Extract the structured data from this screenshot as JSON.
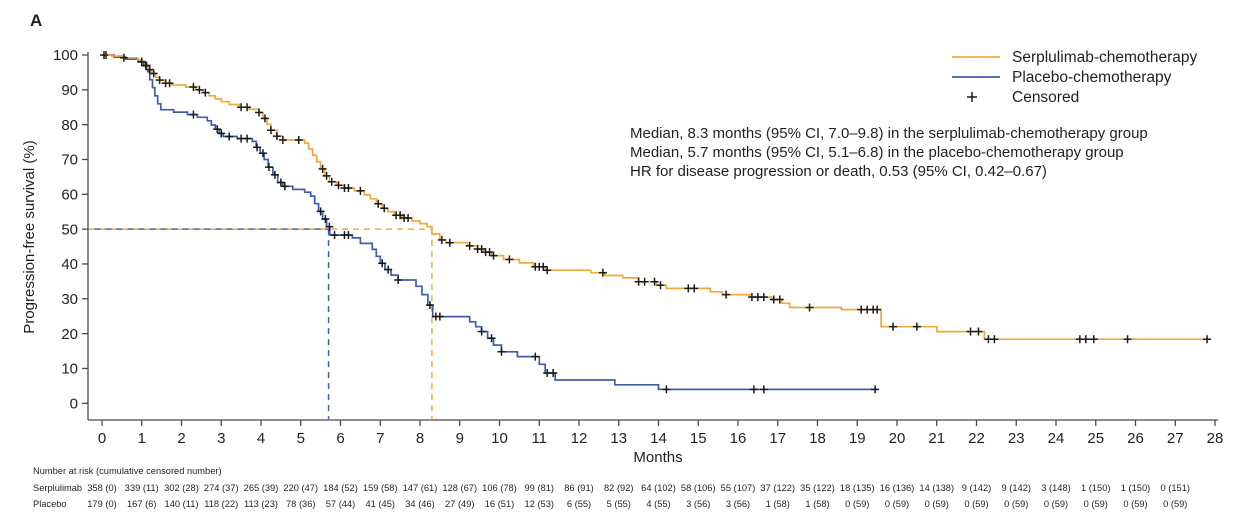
{
  "panel_label": "A",
  "colors": {
    "serplulimab": "#f2a93b",
    "placebo": "#3f5fae",
    "censor": "#1a1a1a",
    "axis": "#4a4a4a",
    "text": "#231f20"
  },
  "legend": {
    "items": [
      {
        "label": "Serplulimab-chemotherapy",
        "marker": "line",
        "color": "#f2a93b"
      },
      {
        "label": "Placebo-chemotherapy",
        "marker": "line",
        "color": "#3f5fae"
      },
      {
        "label": "Censored",
        "marker": "plus",
        "color": "#1a1a1a"
      }
    ]
  },
  "annotations": {
    "line1": "Median, 8.3 months (95% CI, 7.0–9.8) in the serplulimab-chemotherapy group",
    "line2": "Median, 5.7 months (95% CI, 5.1–6.8) in the placebo-chemotherapy group",
    "line3": "HR for disease progression or death, 0.53 (95% CI, 0.42–0.67)"
  },
  "chart_data": {
    "type": "line",
    "subtype": "kaplan-meier-step",
    "xlabel": "Months",
    "ylabel": "Progression-free survival (%)",
    "xlim": [
      0,
      28
    ],
    "ylim": [
      0,
      100
    ],
    "x_ticks": [
      0,
      1,
      2,
      3,
      4,
      5,
      6,
      7,
      8,
      9,
      10,
      11,
      12,
      13,
      14,
      15,
      16,
      17,
      18,
      19,
      20,
      21,
      22,
      23,
      24,
      25,
      26,
      27,
      28
    ],
    "y_ticks": [
      0,
      10,
      20,
      30,
      40,
      50,
      60,
      70,
      80,
      90,
      100
    ],
    "grid": false,
    "legend_position": "top-right",
    "medians": {
      "serplulimab_months": 8.3,
      "placebo_months": 5.7,
      "reference_pct": 50
    },
    "series": [
      {
        "name": "Placebo-chemotherapy",
        "color": "#3f5fae",
        "steps": [
          [
            0,
            100
          ],
          [
            0.3,
            99.4
          ],
          [
            0.6,
            98.8
          ],
          [
            0.9,
            98.1
          ],
          [
            1.05,
            97.0
          ],
          [
            1.15,
            95.2
          ],
          [
            1.2,
            92.9
          ],
          [
            1.27,
            90.6
          ],
          [
            1.33,
            88.3
          ],
          [
            1.4,
            86.0
          ],
          [
            1.48,
            84.3
          ],
          [
            1.8,
            83.6
          ],
          [
            2.15,
            82.9
          ],
          [
            2.4,
            82.1
          ],
          [
            2.65,
            81.1
          ],
          [
            2.75,
            79.9
          ],
          [
            2.85,
            78.7
          ],
          [
            2.95,
            77.5
          ],
          [
            3.05,
            76.6
          ],
          [
            3.4,
            76.0
          ],
          [
            3.78,
            75.2
          ],
          [
            3.88,
            73.5
          ],
          [
            3.98,
            71.8
          ],
          [
            4.08,
            70.0
          ],
          [
            4.18,
            67.8
          ],
          [
            4.3,
            65.6
          ],
          [
            4.42,
            63.4
          ],
          [
            4.55,
            62.3
          ],
          [
            4.8,
            61.4
          ],
          [
            5.1,
            60.6
          ],
          [
            5.25,
            59.5
          ],
          [
            5.35,
            57.3
          ],
          [
            5.45,
            55.1
          ],
          [
            5.55,
            52.9
          ],
          [
            5.65,
            50.7
          ],
          [
            5.73,
            48.3
          ],
          [
            6.3,
            47.5
          ],
          [
            6.5,
            45.9
          ],
          [
            6.8,
            44.2
          ],
          [
            6.9,
            42.2
          ],
          [
            7.0,
            40.2
          ],
          [
            7.12,
            38.4
          ],
          [
            7.27,
            36.8
          ],
          [
            7.45,
            35.4
          ],
          [
            7.9,
            33.6
          ],
          [
            8.05,
            31.2
          ],
          [
            8.2,
            28.2
          ],
          [
            8.32,
            24.9
          ],
          [
            9.25,
            23.4
          ],
          [
            9.4,
            22.0
          ],
          [
            9.55,
            20.6
          ],
          [
            9.7,
            18.7
          ],
          [
            9.85,
            16.7
          ],
          [
            10.05,
            14.8
          ],
          [
            10.45,
            13.4
          ],
          [
            11.0,
            11.2
          ],
          [
            11.15,
            8.7
          ],
          [
            11.4,
            6.7
          ],
          [
            12.9,
            5.3
          ],
          [
            14.0,
            4.0
          ],
          [
            19.5,
            4.0
          ]
        ],
        "censor_times": [
          0.1,
          1.0,
          1.12,
          2.3,
          2.9,
          3.0,
          3.2,
          3.5,
          3.65,
          3.9,
          4.05,
          4.2,
          4.35,
          4.5,
          4.6,
          5.5,
          5.62,
          5.72,
          5.85,
          6.1,
          6.2,
          7.05,
          7.2,
          7.45,
          8.25,
          8.4,
          8.5,
          9.55,
          9.8,
          10.05,
          10.9,
          11.2,
          11.35,
          14.2,
          16.4,
          16.65,
          19.45
        ]
      },
      {
        "name": "Serplulimab-chemotherapy",
        "color": "#f2a93b",
        "steps": [
          [
            0,
            100
          ],
          [
            0.25,
            99.7
          ],
          [
            0.55,
            99.2
          ],
          [
            0.9,
            98.6
          ],
          [
            1.0,
            98.0
          ],
          [
            1.1,
            96.9
          ],
          [
            1.15,
            95.8
          ],
          [
            1.25,
            94.7
          ],
          [
            1.35,
            93.6
          ],
          [
            1.45,
            92.8
          ],
          [
            1.6,
            91.9
          ],
          [
            1.75,
            91.4
          ],
          [
            2.1,
            90.8
          ],
          [
            2.35,
            90.0
          ],
          [
            2.55,
            89.2
          ],
          [
            2.7,
            88.3
          ],
          [
            2.85,
            87.4
          ],
          [
            3.0,
            86.6
          ],
          [
            3.2,
            85.8
          ],
          [
            3.45,
            85.0
          ],
          [
            3.7,
            84.4
          ],
          [
            3.95,
            83.5
          ],
          [
            4.05,
            81.8
          ],
          [
            4.15,
            80.1
          ],
          [
            4.25,
            78.4
          ],
          [
            4.4,
            76.7
          ],
          [
            4.55,
            75.6
          ],
          [
            5.1,
            74.7
          ],
          [
            5.2,
            73.0
          ],
          [
            5.3,
            71.2
          ],
          [
            5.4,
            69.3
          ],
          [
            5.5,
            67.3
          ],
          [
            5.6,
            65.3
          ],
          [
            5.72,
            63.6
          ],
          [
            5.9,
            62.6
          ],
          [
            6.1,
            61.8
          ],
          [
            6.35,
            61.0
          ],
          [
            6.6,
            59.8
          ],
          [
            6.75,
            58.7
          ],
          [
            6.9,
            57.3
          ],
          [
            7.05,
            56.0
          ],
          [
            7.2,
            55.0
          ],
          [
            7.35,
            54.0
          ],
          [
            7.55,
            53.2
          ],
          [
            7.8,
            52.4
          ],
          [
            8.0,
            51.6
          ],
          [
            8.18,
            50.7
          ],
          [
            8.3,
            48.6
          ],
          [
            8.5,
            46.9
          ],
          [
            8.65,
            46.1
          ],
          [
            9.2,
            45.2
          ],
          [
            9.45,
            44.3
          ],
          [
            9.6,
            43.4
          ],
          [
            9.8,
            42.4
          ],
          [
            10.1,
            41.3
          ],
          [
            10.5,
            40.3
          ],
          [
            10.85,
            39.2
          ],
          [
            11.15,
            38.2
          ],
          [
            12.3,
            37.5
          ],
          [
            12.65,
            36.7
          ],
          [
            13.1,
            36.0
          ],
          [
            13.5,
            34.9
          ],
          [
            13.95,
            33.9
          ],
          [
            14.2,
            33.0
          ],
          [
            15.3,
            32.0
          ],
          [
            15.6,
            31.2
          ],
          [
            16.3,
            30.5
          ],
          [
            16.85,
            29.8
          ],
          [
            17.1,
            28.7
          ],
          [
            17.3,
            27.5
          ],
          [
            18.6,
            26.9
          ],
          [
            19.6,
            22.0
          ],
          [
            21.0,
            20.6
          ],
          [
            22.2,
            18.4
          ],
          [
            27.85,
            18.4
          ]
        ],
        "censor_times": [
          0.05,
          0.55,
          1.0,
          1.1,
          1.2,
          1.3,
          1.45,
          1.6,
          1.7,
          2.3,
          2.45,
          2.6,
          3.5,
          3.65,
          3.95,
          4.1,
          4.25,
          4.4,
          4.55,
          4.95,
          5.55,
          5.65,
          5.78,
          5.95,
          6.1,
          6.2,
          6.5,
          6.95,
          7.1,
          7.4,
          7.5,
          7.6,
          7.7,
          8.55,
          8.75,
          9.25,
          9.45,
          9.55,
          9.65,
          9.75,
          9.85,
          10.25,
          10.9,
          11.0,
          11.1,
          11.2,
          12.6,
          13.5,
          13.65,
          13.9,
          14.05,
          14.75,
          14.9,
          15.7,
          16.35,
          16.5,
          16.65,
          16.9,
          17.05,
          17.8,
          19.1,
          19.25,
          19.4,
          19.5,
          19.9,
          20.5,
          21.85,
          22.05,
          22.3,
          22.45,
          24.6,
          24.75,
          24.95,
          25.8,
          27.8
        ]
      }
    ]
  },
  "risk_table": {
    "header": "Number at risk (cumulative censored number)",
    "rows": [
      {
        "label": "Serplulimab",
        "values": [
          "358 (0)",
          "339 (11)",
          "302 (28)",
          "274 (37)",
          "265 (39)",
          "220 (47)",
          "184 (52)",
          "159 (58)",
          "147 (61)",
          "128 (67)",
          "106 (78)",
          "99 (81)",
          "86 (91)",
          "82 (92)",
          "64 (102)",
          "58 (106)",
          "55 (107)",
          "37 (122)",
          "35 (122)",
          "18 (135)",
          "16 (136)",
          "14 (138)",
          "9 (142)",
          "9 (142)",
          "3 (148)",
          "1 (150)",
          "1 (150)",
          "0 (151)"
        ]
      },
      {
        "label": "Placebo",
        "values": [
          "179 (0)",
          "167 (6)",
          "140 (11)",
          "118 (22)",
          "113 (23)",
          "78 (36)",
          "57 (44)",
          "41 (45)",
          "34 (46)",
          "27 (49)",
          "16 (51)",
          "12 (53)",
          "6 (55)",
          "5 (55)",
          "4 (55)",
          "3 (56)",
          "3 (56)",
          "1 (58)",
          "1 (58)",
          "0 (59)",
          "0 (59)",
          "0 (59)",
          "0 (59)",
          "0 (59)",
          "0 (59)",
          "0 (59)",
          "0 (59)",
          "0 (59)"
        ]
      }
    ]
  }
}
